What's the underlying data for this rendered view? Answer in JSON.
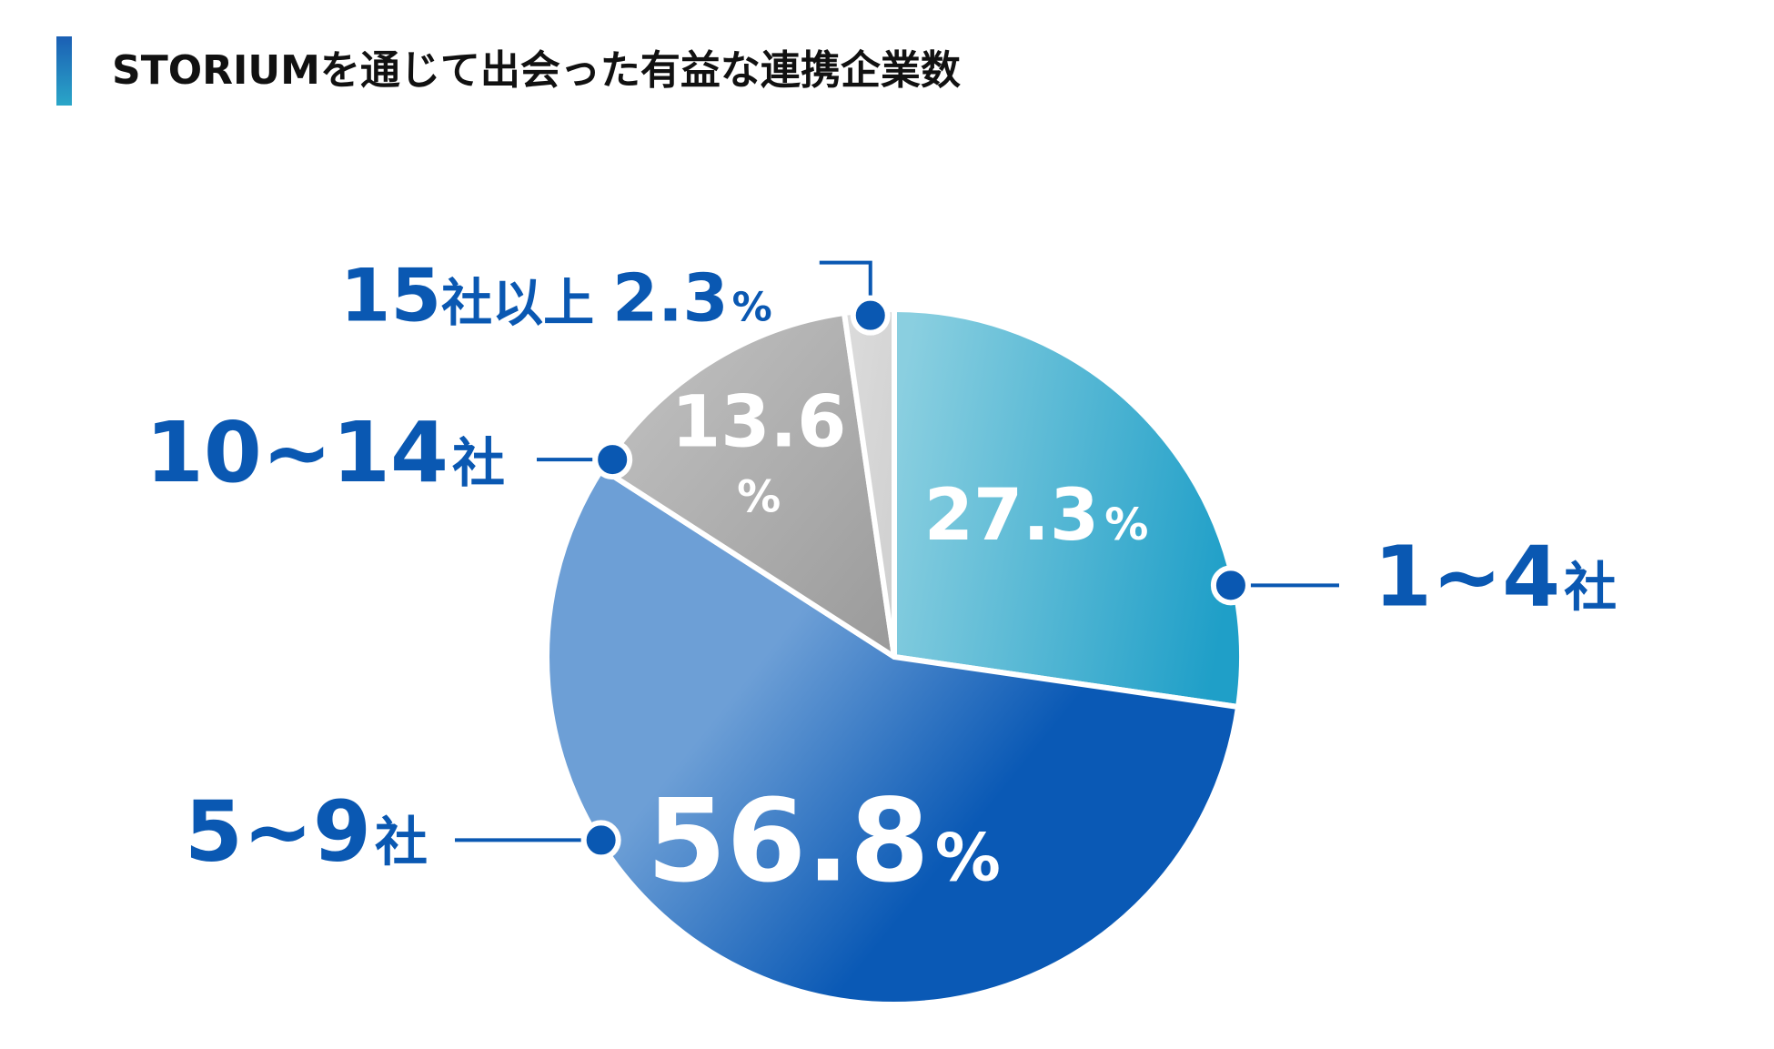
{
  "chart_data": {
    "type": "pie",
    "title": "STORIUMを通じて出会った有益な連携企業数",
    "slices": [
      {
        "category": "1~4社",
        "value": 27.3,
        "num": "27.3",
        "unit": "%",
        "color_start": "#8acfe0",
        "color_end": "#1f9fc8"
      },
      {
        "category": "5~9社",
        "value": 56.8,
        "num": "56.8",
        "unit": "%",
        "color_start": "#6d9fd6",
        "color_end": "#0a59b5"
      },
      {
        "category": "10~14社",
        "value": 13.6,
        "num": "13.6",
        "unit": "%",
        "color_start": "#c4c4c4",
        "color_end": "#9a9a9a"
      },
      {
        "category": "15社以上",
        "value": 2.3,
        "num": "2.3",
        "unit": "%",
        "color_start": "#dcdcdc",
        "color_end": "#cfcfcf"
      }
    ],
    "start_angle_deg": 0,
    "direction": "clockwise",
    "legend": "none"
  },
  "colors": {
    "label_blue": "#0a58b2",
    "leader_line": "#0a58b2",
    "title_text": "#111111",
    "accent_bar_top": "#1b5fb4",
    "accent_bar_bottom": "#2aa6c8"
  }
}
